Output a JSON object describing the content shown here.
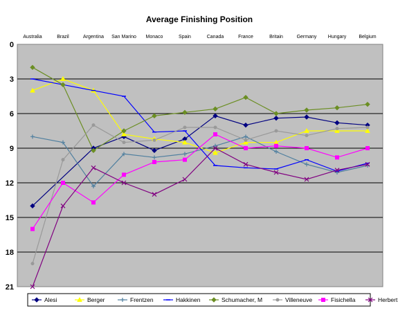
{
  "chart_data": {
    "type": "line",
    "title": "Average Finishing Position",
    "xlabel": "",
    "ylabel": "",
    "categories": [
      "Australia",
      "Brazil",
      "Argentina",
      "San Marino",
      "Monaco",
      "Spain",
      "Canada",
      "France",
      "Britain",
      "Germany",
      "Hungary",
      "Belgium"
    ],
    "ylim": [
      21,
      0
    ],
    "y_inverted": true,
    "yticks": [
      0,
      3,
      6,
      9,
      12,
      15,
      18,
      21
    ],
    "grid": "horizontal",
    "legend_position": "bottom",
    "plot_background": "#c0c0c0",
    "series": [
      {
        "name": "Alesi",
        "color": "#000080",
        "marker": "diamond",
        "values": [
          14.0,
          null,
          9.0,
          8.0,
          9.2,
          8.2,
          6.2,
          7.0,
          6.4,
          6.3,
          6.8,
          7.0
        ]
      },
      {
        "name": "Berger",
        "color": "#ffff00",
        "marker": "triangle",
        "values": [
          4.0,
          3.0,
          4.0,
          7.8,
          8.2,
          8.5,
          9.4,
          8.5,
          8.5,
          7.5,
          7.5,
          7.5
        ]
      },
      {
        "name": "Frentzen",
        "color": "#4f7f9f",
        "marker": "plus",
        "values": [
          8.0,
          8.5,
          12.3,
          9.5,
          9.8,
          9.5,
          8.8,
          8.0,
          9.3,
          10.4,
          11.1,
          10.5
        ]
      },
      {
        "name": "Hakkinen",
        "color": "#0000ff",
        "marker": "dash",
        "values": [
          3.0,
          3.5,
          4.0,
          4.5,
          7.6,
          7.5,
          10.5,
          10.7,
          10.8,
          10.0,
          11.0,
          10.3
        ]
      },
      {
        "name": "Schumacher, M",
        "color": "#6b8e23",
        "marker": "diamond",
        "values": [
          2.0,
          3.5,
          9.2,
          7.5,
          6.2,
          5.9,
          5.6,
          4.6,
          6.0,
          5.7,
          5.5,
          5.2
        ]
      },
      {
        "name": "Villeneuve",
        "color": "#999999",
        "marker": "circle",
        "values": [
          19.0,
          10.0,
          7.0,
          8.5,
          8.3,
          7.2,
          7.2,
          8.3,
          7.5,
          7.9,
          7.3,
          7.2
        ]
      },
      {
        "name": "Fisichella",
        "color": "#ff00ff",
        "marker": "square",
        "values": [
          16.0,
          12.0,
          13.7,
          11.3,
          10.2,
          10.0,
          7.8,
          9.0,
          8.8,
          9.0,
          9.8,
          9.0
        ]
      },
      {
        "name": "Herbert",
        "color": "#800080",
        "marker": "x",
        "values": [
          21.0,
          14.0,
          10.7,
          12.0,
          13.0,
          11.7,
          9.0,
          10.4,
          11.1,
          11.7,
          10.9,
          10.4
        ]
      }
    ]
  }
}
